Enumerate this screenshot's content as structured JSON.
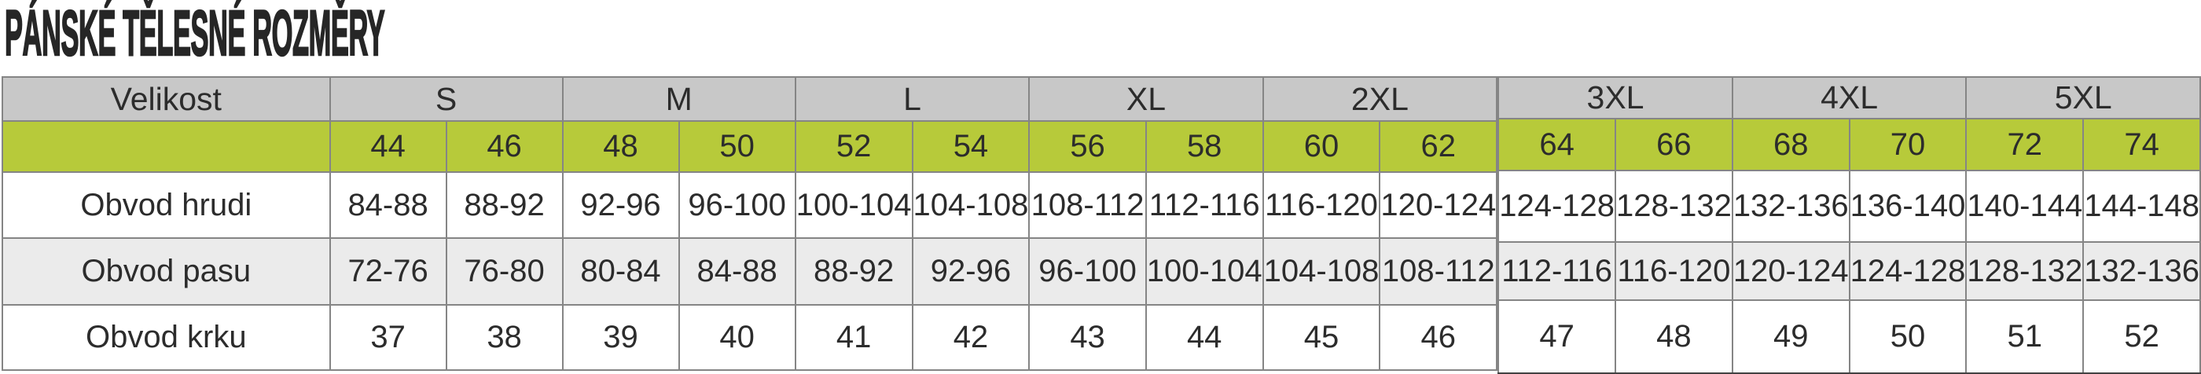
{
  "title": "PÁNSKÉ TĚLESNÉ ROZMĚRY",
  "colors": {
    "header_bg": "#c8c8c8",
    "size_row_bg": "#b7ca3a",
    "alt_row_bg": "#ebebeb",
    "row_bg": "#ffffff",
    "border": "#858585",
    "text": "#2c2c2c"
  },
  "table": {
    "left": {
      "corner_label": "Velikost",
      "groups": [
        {
          "label": "S",
          "span": 2
        },
        {
          "label": "M",
          "span": 2
        },
        {
          "label": "L",
          "span": 2
        },
        {
          "label": "XL",
          "span": 2
        },
        {
          "label": "2XL",
          "span": 2
        }
      ],
      "sizes": [
        "44",
        "46",
        "48",
        "50",
        "52",
        "54",
        "56",
        "58",
        "60",
        "62"
      ],
      "rows": [
        {
          "label": "Obvod hrudi",
          "values": [
            "84-88",
            "88-92",
            "92-96",
            "96-100",
            "100-104",
            "104-108",
            "108-112",
            "112-116",
            "116-120",
            "120-124"
          ]
        },
        {
          "label": "Obvod pasu",
          "values": [
            "72-76",
            "76-80",
            "80-84",
            "84-88",
            "88-92",
            "92-96",
            "96-100",
            "100-104",
            "104-108",
            "108-112"
          ]
        },
        {
          "label": "Obvod krku",
          "values": [
            "37",
            "38",
            "39",
            "40",
            "41",
            "42",
            "43",
            "44",
            "45",
            "46"
          ]
        }
      ]
    },
    "right": {
      "groups": [
        {
          "label": "3XL",
          "span": 2
        },
        {
          "label": "4XL",
          "span": 2
        },
        {
          "label": "5XL",
          "span": 2
        }
      ],
      "sizes": [
        "64",
        "66",
        "68",
        "70",
        "72",
        "74"
      ],
      "rows": [
        {
          "values": [
            "124-128",
            "128-132",
            "132-136",
            "136-140",
            "140-144",
            "144-148"
          ]
        },
        {
          "values": [
            "112-116",
            "116-120",
            "120-124",
            "124-128",
            "128-132",
            "132-136"
          ]
        },
        {
          "values": [
            "47",
            "48",
            "49",
            "50",
            "51",
            "52"
          ]
        }
      ]
    }
  },
  "layout": {
    "label_col_width": 419,
    "size_col_width": 148.5
  }
}
